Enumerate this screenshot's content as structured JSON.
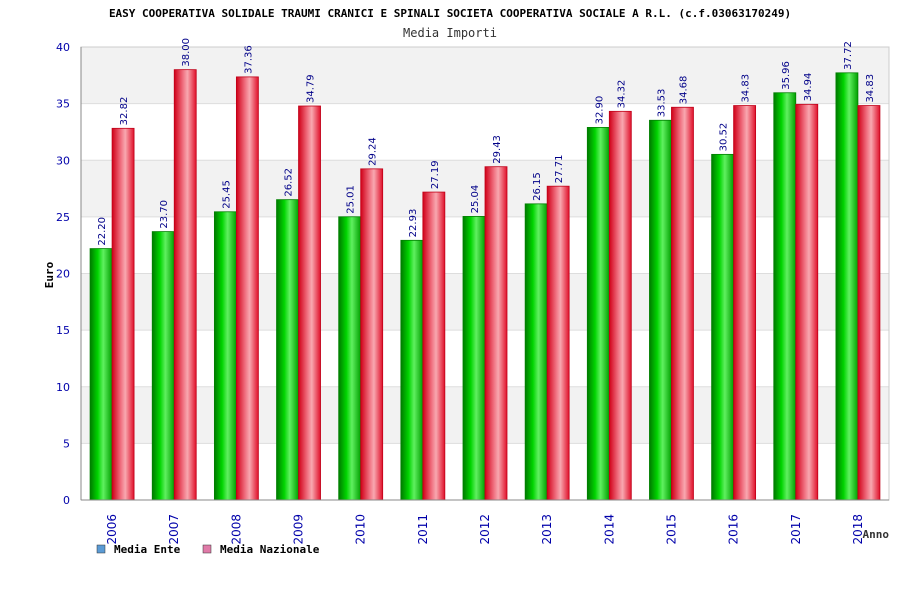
{
  "chart_data": {
    "type": "bar",
    "title": "EASY COOPERATIVA SOLIDALE TRAUMI CRANICI E SPINALI SOCIETA COOPERATIVA SOCIALE A R.L. (c.f.03063170249)",
    "subtitle": "Media Importi",
    "xlabel": "Anno",
    "ylabel": "Euro",
    "ylim": [
      0,
      40
    ],
    "yticks": [
      0,
      5,
      10,
      15,
      20,
      25,
      30,
      35,
      40
    ],
    "grid": "horizontal bands",
    "legend_placement": "bottom-left",
    "categories": [
      "2006",
      "2007",
      "2008",
      "2009",
      "2010",
      "2011",
      "2012",
      "2013",
      "2014",
      "2015",
      "2016",
      "2017",
      "2018"
    ],
    "series": [
      {
        "name": "Media Ente",
        "legend_color": "#5b9bd5",
        "color": "#00b400",
        "values": [
          22.2,
          23.7,
          25.45,
          26.52,
          25.01,
          22.93,
          25.04,
          26.15,
          32.9,
          33.53,
          30.52,
          35.96,
          37.72
        ],
        "labels": [
          "22.20",
          "23.70",
          "25.45",
          "26.52",
          "25.01",
          "22.93",
          "25.04",
          "26.15",
          "32.90",
          "33.53",
          "30.52",
          "35.96",
          "37.72"
        ]
      },
      {
        "name": "Media Nazionale",
        "legend_color": "#e07aa8",
        "color": "#e8102a",
        "values": [
          32.82,
          38.0,
          37.36,
          34.79,
          29.24,
          27.19,
          29.43,
          27.71,
          34.32,
          34.68,
          34.83,
          34.94,
          34.83
        ],
        "labels": [
          "32.82",
          "38.00",
          "37.36",
          "34.79",
          "29.24",
          "27.19",
          "29.43",
          "27.71",
          "34.32",
          "34.68",
          "34.83",
          "34.94",
          "34.83"
        ]
      }
    ]
  }
}
